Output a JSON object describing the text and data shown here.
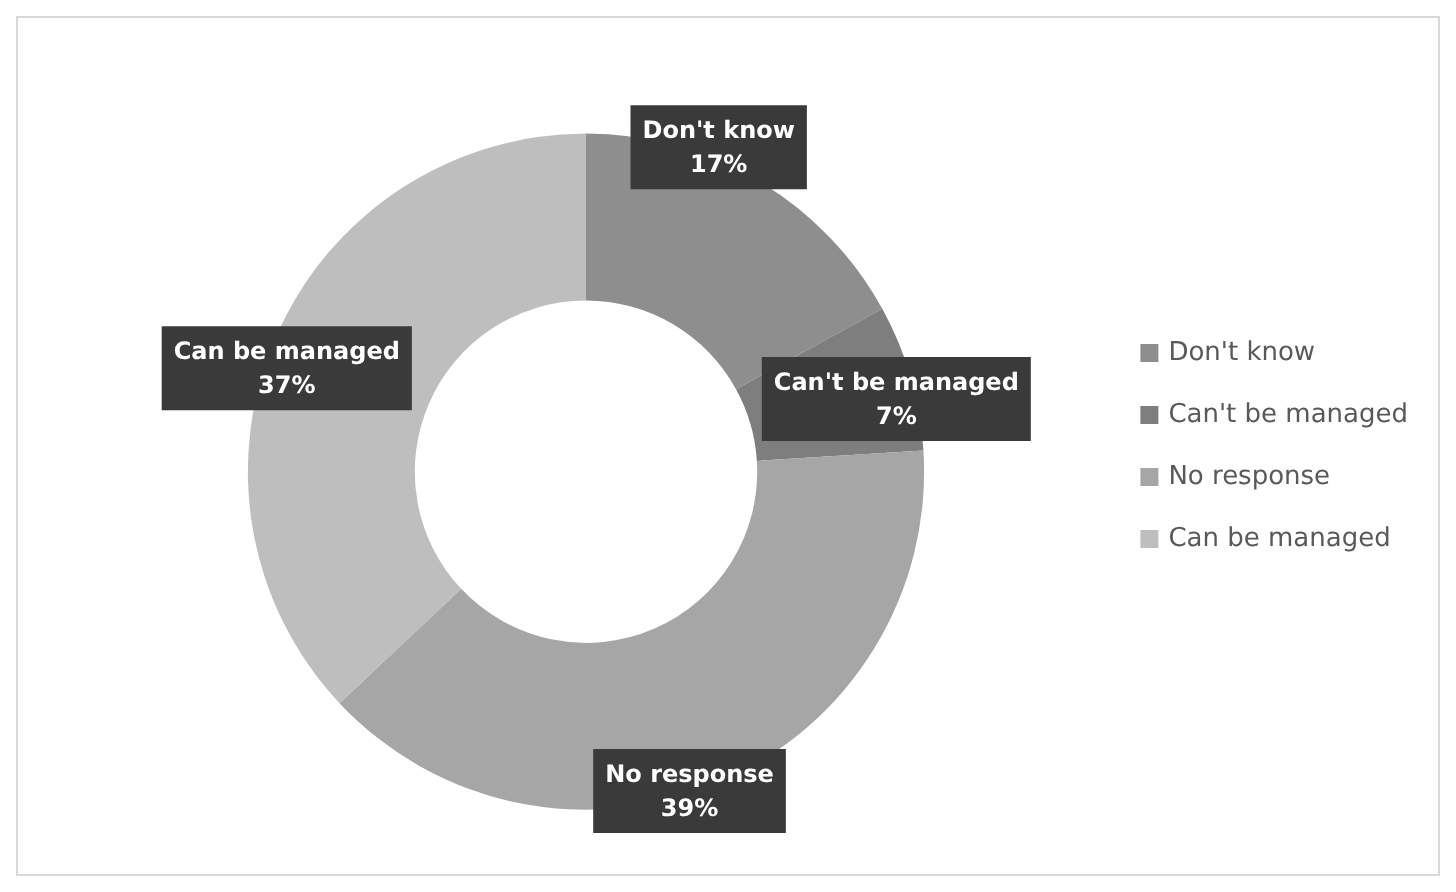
{
  "chart_data": {
    "type": "donut",
    "categories": [
      "Don't know",
      "Can't be managed",
      "No response",
      "Can be managed"
    ],
    "values": [
      17,
      7,
      39,
      37
    ],
    "colors": [
      "#8e8e8e",
      "#7e7e7e",
      "#a6a6a6",
      "#bebebe"
    ],
    "value_labels": [
      "17%",
      "7%",
      "39%",
      "37%"
    ],
    "legend": "right"
  }
}
